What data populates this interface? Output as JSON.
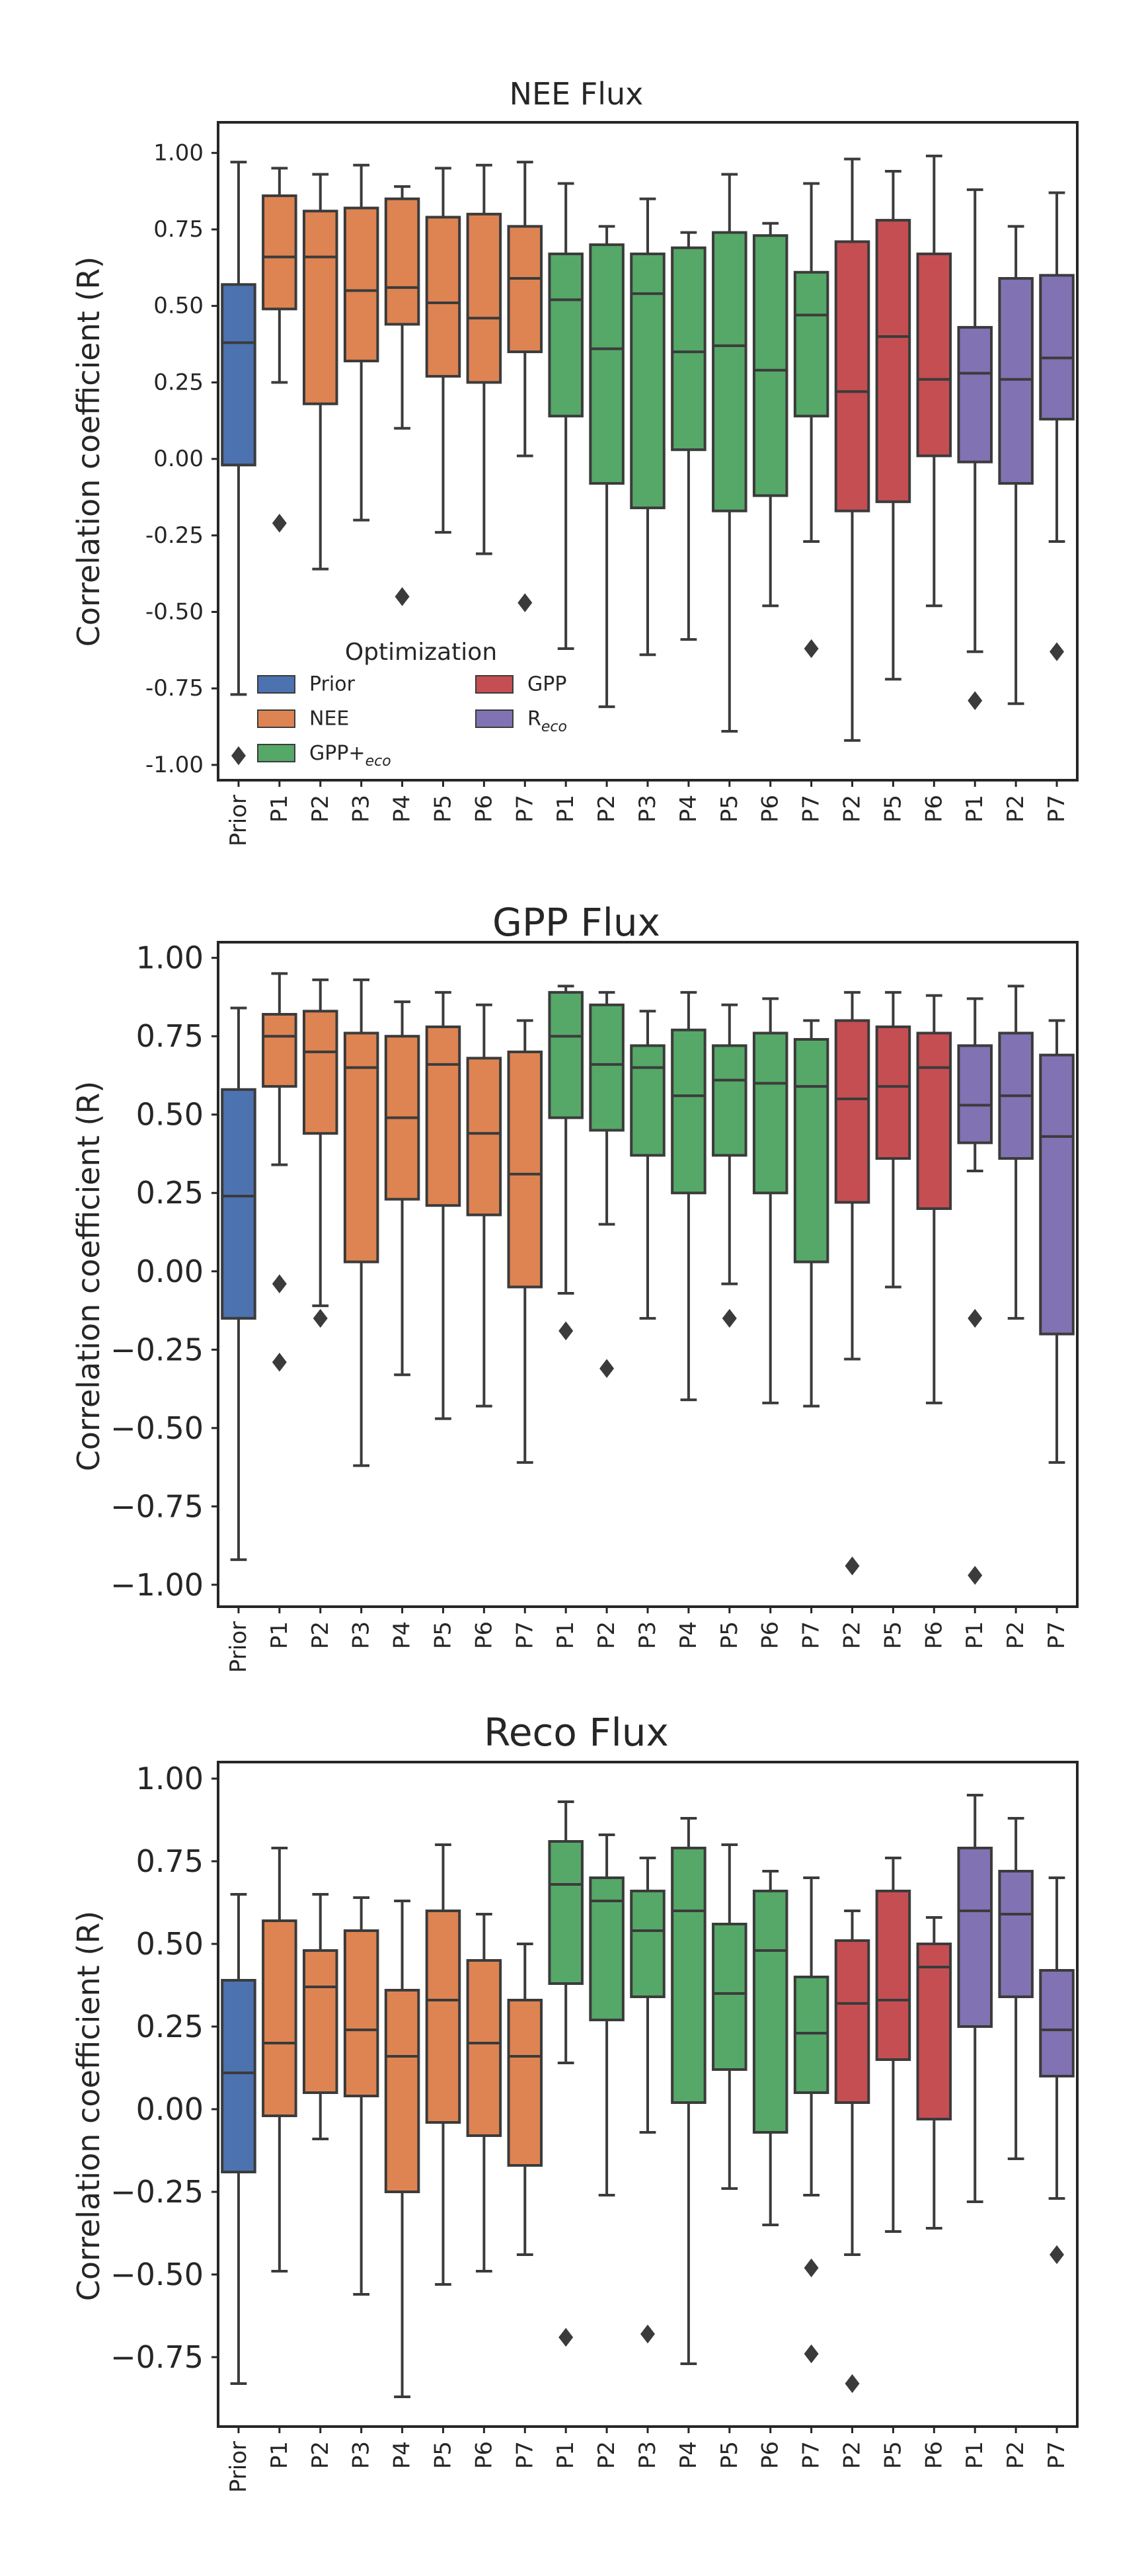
{
  "colors": {
    "Prior": "#4c72b0",
    "NEE": "#dd8452",
    "GPP+Reco": "#55a868",
    "GPP": "#c44e52",
    "Reco": "#8172b3",
    "line": "#3b3b3b"
  },
  "shared": {
    "categories": [
      "Prior",
      "P1",
      "P2",
      "P3",
      "P4",
      "P5",
      "P6",
      "P7",
      "P1",
      "P2",
      "P3",
      "P4",
      "P5",
      "P6",
      "P7",
      "P2",
      "P5",
      "P6",
      "P1",
      "P2",
      "P7"
    ],
    "groups": [
      "Prior",
      "NEE",
      "NEE",
      "NEE",
      "NEE",
      "NEE",
      "NEE",
      "NEE",
      "GPP+Reco",
      "GPP+Reco",
      "GPP+Reco",
      "GPP+Reco",
      "GPP+Reco",
      "GPP+Reco",
      "GPP+Reco",
      "GPP",
      "GPP",
      "GPP",
      "Reco",
      "Reco",
      "Reco"
    ]
  },
  "legend": {
    "title": "Optimization",
    "entries": [
      {
        "key": "Prior",
        "label": "Prior",
        "col": 0,
        "row": 0
      },
      {
        "key": "NEE",
        "label": "NEE",
        "col": 0,
        "row": 1
      },
      {
        "key": "GPP+Reco",
        "label": "GPP+",
        "sub": "eco",
        "col": 0,
        "row": 2
      },
      {
        "key": "GPP",
        "label": "GPP",
        "col": 1,
        "row": 0
      },
      {
        "key": "Reco",
        "label": "R",
        "sub": "eco",
        "col": 1,
        "row": 1
      }
    ]
  },
  "chart_data": [
    {
      "type": "box",
      "title": "NEE Flux",
      "ylabel": "Correlation coefficient (R)",
      "ylim": [
        -1.05,
        1.1
      ],
      "yticks": [
        -1.0,
        -0.75,
        -0.5,
        -0.25,
        0.0,
        0.25,
        0.5,
        0.75,
        1.0
      ],
      "ytick_labels": [
        "-1.00",
        "-0.75",
        "-0.50",
        "-0.25",
        "0.00",
        "0.25",
        "0.50",
        "0.75",
        "1.00"
      ],
      "grid": false,
      "legend_position": "lower-left",
      "boxes": [
        {
          "min": -0.77,
          "q1": -0.02,
          "median": 0.38,
          "q3": 0.57,
          "max": 0.97,
          "outliers": [
            -0.97
          ]
        },
        {
          "min": 0.25,
          "q1": 0.49,
          "median": 0.66,
          "q3": 0.86,
          "max": 0.95,
          "outliers": [
            -0.21
          ]
        },
        {
          "min": -0.36,
          "q1": 0.18,
          "median": 0.66,
          "q3": 0.81,
          "max": 0.93,
          "outliers": []
        },
        {
          "min": -0.2,
          "q1": 0.32,
          "median": 0.55,
          "q3": 0.82,
          "max": 0.96,
          "outliers": []
        },
        {
          "min": 0.1,
          "q1": 0.44,
          "median": 0.56,
          "q3": 0.85,
          "max": 0.89,
          "outliers": [
            -0.45
          ]
        },
        {
          "min": -0.24,
          "q1": 0.27,
          "median": 0.51,
          "q3": 0.79,
          "max": 0.95,
          "outliers": []
        },
        {
          "min": -0.31,
          "q1": 0.25,
          "median": 0.46,
          "q3": 0.8,
          "max": 0.96,
          "outliers": []
        },
        {
          "min": 0.01,
          "q1": 0.35,
          "median": 0.59,
          "q3": 0.76,
          "max": 0.97,
          "outliers": [
            -0.47
          ]
        },
        {
          "min": -0.62,
          "q1": 0.14,
          "median": 0.52,
          "q3": 0.67,
          "max": 0.9,
          "outliers": []
        },
        {
          "min": -0.81,
          "q1": -0.08,
          "median": 0.36,
          "q3": 0.7,
          "max": 0.76,
          "outliers": []
        },
        {
          "min": -0.64,
          "q1": -0.16,
          "median": 0.54,
          "q3": 0.67,
          "max": 0.85,
          "outliers": []
        },
        {
          "min": -0.59,
          "q1": 0.03,
          "median": 0.35,
          "q3": 0.69,
          "max": 0.74,
          "outliers": []
        },
        {
          "min": -0.89,
          "q1": -0.17,
          "median": 0.37,
          "q3": 0.74,
          "max": 0.93,
          "outliers": []
        },
        {
          "min": -0.48,
          "q1": -0.12,
          "median": 0.29,
          "q3": 0.73,
          "max": 0.77,
          "outliers": []
        },
        {
          "min": -0.27,
          "q1": 0.14,
          "median": 0.47,
          "q3": 0.61,
          "max": 0.9,
          "outliers": [
            -0.62
          ]
        },
        {
          "min": -0.92,
          "q1": -0.17,
          "median": 0.22,
          "q3": 0.71,
          "max": 0.98,
          "outliers": []
        },
        {
          "min": -0.72,
          "q1": -0.14,
          "median": 0.4,
          "q3": 0.78,
          "max": 0.94,
          "outliers": []
        },
        {
          "min": -0.48,
          "q1": 0.01,
          "median": 0.26,
          "q3": 0.67,
          "max": 0.99,
          "outliers": []
        },
        {
          "min": -0.63,
          "q1": -0.01,
          "median": 0.28,
          "q3": 0.43,
          "max": 0.88,
          "outliers": [
            -0.79
          ]
        },
        {
          "min": -0.8,
          "q1": -0.08,
          "median": 0.26,
          "q3": 0.59,
          "max": 0.76,
          "outliers": []
        },
        {
          "min": -0.27,
          "q1": 0.13,
          "median": 0.33,
          "q3": 0.6,
          "max": 0.87,
          "outliers": [
            -0.63
          ]
        }
      ]
    },
    {
      "type": "box",
      "title": "GPP Flux",
      "ylabel": "Correlation coefficient (R)",
      "ylim": [
        -1.07,
        1.05
      ],
      "yticks": [
        -1.0,
        -0.75,
        -0.5,
        -0.25,
        0.0,
        0.25,
        0.5,
        0.75,
        1.0
      ],
      "ytick_labels": [
        "−1.00",
        "−0.75",
        "−0.50",
        "−0.25",
        "0.00",
        "0.25",
        "0.50",
        "0.75",
        "1.00"
      ],
      "grid": false,
      "boxes": [
        {
          "min": -0.92,
          "q1": -0.15,
          "median": 0.24,
          "q3": 0.58,
          "max": 0.84,
          "outliers": []
        },
        {
          "min": 0.34,
          "q1": 0.59,
          "median": 0.75,
          "q3": 0.82,
          "max": 0.95,
          "outliers": [
            -0.04,
            -0.29
          ]
        },
        {
          "min": -0.11,
          "q1": 0.44,
          "median": 0.7,
          "q3": 0.83,
          "max": 0.93,
          "outliers": [
            -0.15
          ]
        },
        {
          "min": -0.62,
          "q1": 0.03,
          "median": 0.65,
          "q3": 0.76,
          "max": 0.93,
          "outliers": []
        },
        {
          "min": -0.33,
          "q1": 0.23,
          "median": 0.49,
          "q3": 0.75,
          "max": 0.86,
          "outliers": []
        },
        {
          "min": -0.47,
          "q1": 0.21,
          "median": 0.66,
          "q3": 0.78,
          "max": 0.89,
          "outliers": []
        },
        {
          "min": -0.43,
          "q1": 0.18,
          "median": 0.44,
          "q3": 0.68,
          "max": 0.85,
          "outliers": []
        },
        {
          "min": -0.61,
          "q1": -0.05,
          "median": 0.31,
          "q3": 0.7,
          "max": 0.8,
          "outliers": []
        },
        {
          "min": -0.07,
          "q1": 0.49,
          "median": 0.75,
          "q3": 0.89,
          "max": 0.91,
          "outliers": [
            -0.19
          ]
        },
        {
          "min": 0.15,
          "q1": 0.45,
          "median": 0.66,
          "q3": 0.85,
          "max": 0.89,
          "outliers": [
            -0.31
          ]
        },
        {
          "min": -0.15,
          "q1": 0.37,
          "median": 0.65,
          "q3": 0.72,
          "max": 0.83,
          "outliers": []
        },
        {
          "min": -0.41,
          "q1": 0.25,
          "median": 0.56,
          "q3": 0.77,
          "max": 0.89,
          "outliers": []
        },
        {
          "min": -0.04,
          "q1": 0.37,
          "median": 0.61,
          "q3": 0.72,
          "max": 0.85,
          "outliers": [
            -0.15
          ]
        },
        {
          "min": -0.42,
          "q1": 0.25,
          "median": 0.6,
          "q3": 0.76,
          "max": 0.87,
          "outliers": []
        },
        {
          "min": -0.43,
          "q1": 0.03,
          "median": 0.59,
          "q3": 0.74,
          "max": 0.8,
          "outliers": []
        },
        {
          "min": -0.28,
          "q1": 0.22,
          "median": 0.55,
          "q3": 0.8,
          "max": 0.89,
          "outliers": [
            -0.94
          ]
        },
        {
          "min": -0.05,
          "q1": 0.36,
          "median": 0.59,
          "q3": 0.78,
          "max": 0.89,
          "outliers": []
        },
        {
          "min": -0.42,
          "q1": 0.2,
          "median": 0.65,
          "q3": 0.76,
          "max": 0.88,
          "outliers": []
        },
        {
          "min": 0.32,
          "q1": 0.41,
          "median": 0.53,
          "q3": 0.72,
          "max": 0.87,
          "outliers": [
            -0.15,
            -0.97
          ]
        },
        {
          "min": -0.15,
          "q1": 0.36,
          "median": 0.56,
          "q3": 0.76,
          "max": 0.91,
          "outliers": []
        },
        {
          "min": -0.61,
          "q1": -0.2,
          "median": 0.43,
          "q3": 0.69,
          "max": 0.8,
          "outliers": []
        }
      ]
    },
    {
      "type": "box",
      "title": "Reco Flux",
      "ylabel": "Correlation coefficient (R)",
      "ylim": [
        -0.96,
        1.05
      ],
      "yticks": [
        -0.75,
        -0.5,
        -0.25,
        0.0,
        0.25,
        0.5,
        0.75,
        1.0
      ],
      "ytick_labels": [
        "−0.75",
        "−0.50",
        "−0.25",
        "0.00",
        "0.25",
        "0.50",
        "0.75",
        "1.00"
      ],
      "grid": false,
      "boxes": [
        {
          "min": -0.83,
          "q1": -0.19,
          "median": 0.11,
          "q3": 0.39,
          "max": 0.65,
          "outliers": []
        },
        {
          "min": -0.49,
          "q1": -0.02,
          "median": 0.2,
          "q3": 0.57,
          "max": 0.79,
          "outliers": []
        },
        {
          "min": -0.09,
          "q1": 0.05,
          "median": 0.37,
          "q3": 0.48,
          "max": 0.65,
          "outliers": []
        },
        {
          "min": -0.56,
          "q1": 0.04,
          "median": 0.24,
          "q3": 0.54,
          "max": 0.64,
          "outliers": []
        },
        {
          "min": -0.87,
          "q1": -0.25,
          "median": 0.16,
          "q3": 0.36,
          "max": 0.63,
          "outliers": []
        },
        {
          "min": -0.53,
          "q1": -0.04,
          "median": 0.33,
          "q3": 0.6,
          "max": 0.8,
          "outliers": []
        },
        {
          "min": -0.49,
          "q1": -0.08,
          "median": 0.2,
          "q3": 0.45,
          "max": 0.59,
          "outliers": []
        },
        {
          "min": -0.44,
          "q1": -0.17,
          "median": 0.16,
          "q3": 0.33,
          "max": 0.5,
          "outliers": []
        },
        {
          "min": 0.14,
          "q1": 0.38,
          "median": 0.68,
          "q3": 0.81,
          "max": 0.93,
          "outliers": [
            -0.69
          ]
        },
        {
          "min": -0.26,
          "q1": 0.27,
          "median": 0.63,
          "q3": 0.7,
          "max": 0.83,
          "outliers": []
        },
        {
          "min": -0.07,
          "q1": 0.34,
          "median": 0.54,
          "q3": 0.66,
          "max": 0.76,
          "outliers": [
            -0.68
          ]
        },
        {
          "min": -0.77,
          "q1": 0.02,
          "median": 0.6,
          "q3": 0.79,
          "max": 0.88,
          "outliers": []
        },
        {
          "min": -0.24,
          "q1": 0.12,
          "median": 0.35,
          "q3": 0.56,
          "max": 0.8,
          "outliers": []
        },
        {
          "min": -0.35,
          "q1": -0.07,
          "median": 0.48,
          "q3": 0.66,
          "max": 0.72,
          "outliers": []
        },
        {
          "min": -0.26,
          "q1": 0.05,
          "median": 0.23,
          "q3": 0.4,
          "max": 0.7,
          "outliers": [
            -0.48,
            -0.74
          ]
        },
        {
          "min": -0.44,
          "q1": 0.02,
          "median": 0.32,
          "q3": 0.51,
          "max": 0.6,
          "outliers": [
            -0.83
          ]
        },
        {
          "min": -0.37,
          "q1": 0.15,
          "median": 0.33,
          "q3": 0.66,
          "max": 0.76,
          "outliers": []
        },
        {
          "min": -0.36,
          "q1": -0.03,
          "median": 0.43,
          "q3": 0.5,
          "max": 0.58,
          "outliers": []
        },
        {
          "min": -0.28,
          "q1": 0.25,
          "median": 0.6,
          "q3": 0.79,
          "max": 0.95,
          "outliers": []
        },
        {
          "min": -0.15,
          "q1": 0.34,
          "median": 0.59,
          "q3": 0.72,
          "max": 0.88,
          "outliers": []
        },
        {
          "min": -0.27,
          "q1": 0.1,
          "median": 0.24,
          "q3": 0.42,
          "max": 0.7,
          "outliers": [
            -0.44
          ]
        }
      ]
    }
  ]
}
